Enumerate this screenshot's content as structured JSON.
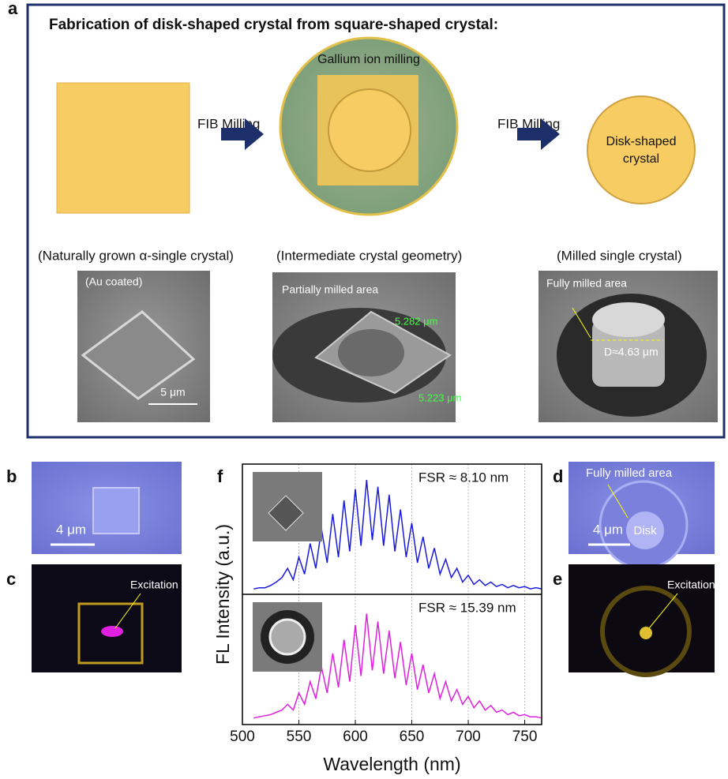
{
  "panel_a": {
    "label": "a",
    "title": "Fabrication of disk-shaped crystal from square-shaped crystal:",
    "arrow_1": "FIB Milling",
    "arrow_2": "FIB Milling",
    "milling": "Gallium ion milling",
    "disk_lines": [
      "Disk-shaped",
      "crystal"
    ],
    "captions": [
      "(Naturally grown α-single crystal)",
      "(Intermediate crystal geometry)",
      "(Milled single crystal)"
    ],
    "sem_1": {
      "note": "(Au coated)",
      "scale": "5 μm"
    },
    "sem_2": {
      "note": "Partially milled area",
      "dim_1": "5.282 μm",
      "dim_2": "5.223 μm"
    },
    "sem_3": {
      "note": "Fully milled area",
      "diameter": "D≈4.63 μm"
    }
  },
  "panel_b": {
    "label": "b",
    "scale": "4 μm"
  },
  "panel_c": {
    "label": "c",
    "note": "Excitation"
  },
  "panel_d": {
    "label": "d",
    "note": "Fully milled area",
    "disk": "Disk",
    "scale": "4 μm"
  },
  "panel_e": {
    "label": "e",
    "note": "Excitation"
  },
  "chart_data": {
    "type": "line",
    "label": "f",
    "y_label": "FL Intensity  (a.u.)",
    "x_label": "Wavelength (nm)",
    "xlim": [
      500,
      765
    ],
    "xticks": [
      500,
      550,
      600,
      650,
      700,
      750
    ],
    "ylim": [
      0,
      1.05
    ],
    "grid": true,
    "x": [
      510,
      515,
      520,
      525,
      530,
      535,
      540,
      545,
      550,
      555,
      560,
      565,
      570,
      575,
      580,
      585,
      590,
      595,
      600,
      605,
      610,
      615,
      620,
      625,
      630,
      635,
      640,
      645,
      650,
      655,
      660,
      665,
      670,
      675,
      680,
      685,
      690,
      695,
      700,
      705,
      710,
      715,
      720,
      725,
      730,
      735,
      740,
      745,
      750,
      755,
      760,
      765
    ],
    "series": [
      {
        "name": "FSR ≈ 8.10 nm",
        "color": "#1a1adc",
        "values": [
          0.02,
          0.03,
          0.03,
          0.05,
          0.08,
          0.12,
          0.2,
          0.1,
          0.3,
          0.15,
          0.42,
          0.2,
          0.55,
          0.25,
          0.68,
          0.3,
          0.8,
          0.35,
          0.9,
          0.4,
          0.98,
          0.45,
          0.92,
          0.4,
          0.85,
          0.35,
          0.72,
          0.3,
          0.6,
          0.25,
          0.48,
          0.2,
          0.38,
          0.15,
          0.28,
          0.12,
          0.2,
          0.08,
          0.14,
          0.06,
          0.1,
          0.05,
          0.08,
          0.04,
          0.06,
          0.03,
          0.05,
          0.03,
          0.04,
          0.02,
          0.03,
          0.02
        ]
      },
      {
        "name": "FSR ≈ 15.39 nm",
        "color": "#e020e0",
        "values": [
          0.03,
          0.04,
          0.05,
          0.06,
          0.08,
          0.1,
          0.15,
          0.1,
          0.25,
          0.15,
          0.35,
          0.2,
          0.48,
          0.25,
          0.6,
          0.3,
          0.72,
          0.35,
          0.85,
          0.4,
          0.95,
          0.45,
          0.88,
          0.42,
          0.8,
          0.38,
          0.7,
          0.32,
          0.6,
          0.28,
          0.5,
          0.25,
          0.42,
          0.2,
          0.35,
          0.18,
          0.28,
          0.15,
          0.22,
          0.12,
          0.18,
          0.1,
          0.14,
          0.08,
          0.1,
          0.06,
          0.08,
          0.05,
          0.06,
          0.04,
          0.04,
          0.03
        ]
      }
    ]
  }
}
